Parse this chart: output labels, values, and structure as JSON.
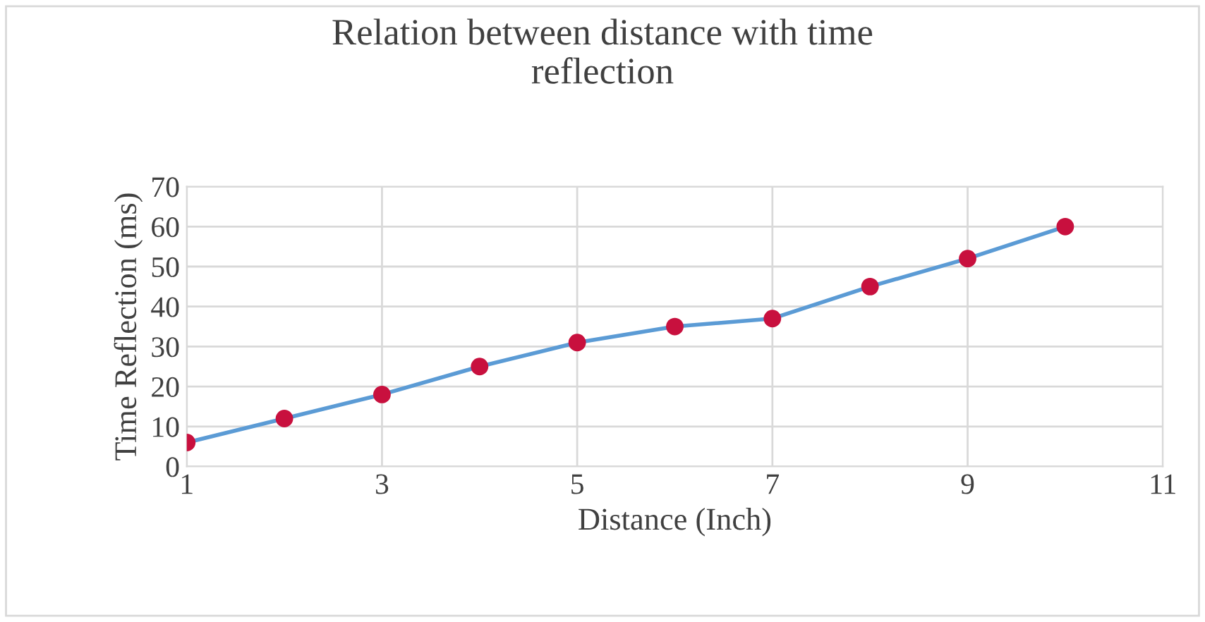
{
  "chart_data": {
    "type": "line",
    "title": "Relation between distance with time\nreflection",
    "xlabel": "Distance (Inch)",
    "ylabel": "Time Reflection (ms)",
    "x": [
      1,
      2,
      3,
      4,
      5,
      6,
      7,
      8,
      9,
      10
    ],
    "series": [
      {
        "color": "#5b9bd5",
        "colors": [
          "#c8103e",
          "#c8103e",
          "#c8103e",
          "#c8103e",
          "#c8103e",
          "#c8103e",
          "#c8103e",
          "#c8103e",
          "#c8103e",
          "#c8103e"
        ],
        "values": [
          6,
          12,
          18,
          25,
          31,
          35,
          37,
          45,
          52,
          60
        ]
      }
    ],
    "xlim": [
      1,
      11
    ],
    "xticks": [
      1,
      3,
      5,
      7,
      9,
      11
    ],
    "ylim": [
      0,
      70
    ],
    "yticks": [
      0,
      10,
      20,
      30,
      40,
      50,
      60,
      70
    ],
    "grid": true,
    "marker": "circle",
    "line_style": "solid",
    "legend": false
  }
}
